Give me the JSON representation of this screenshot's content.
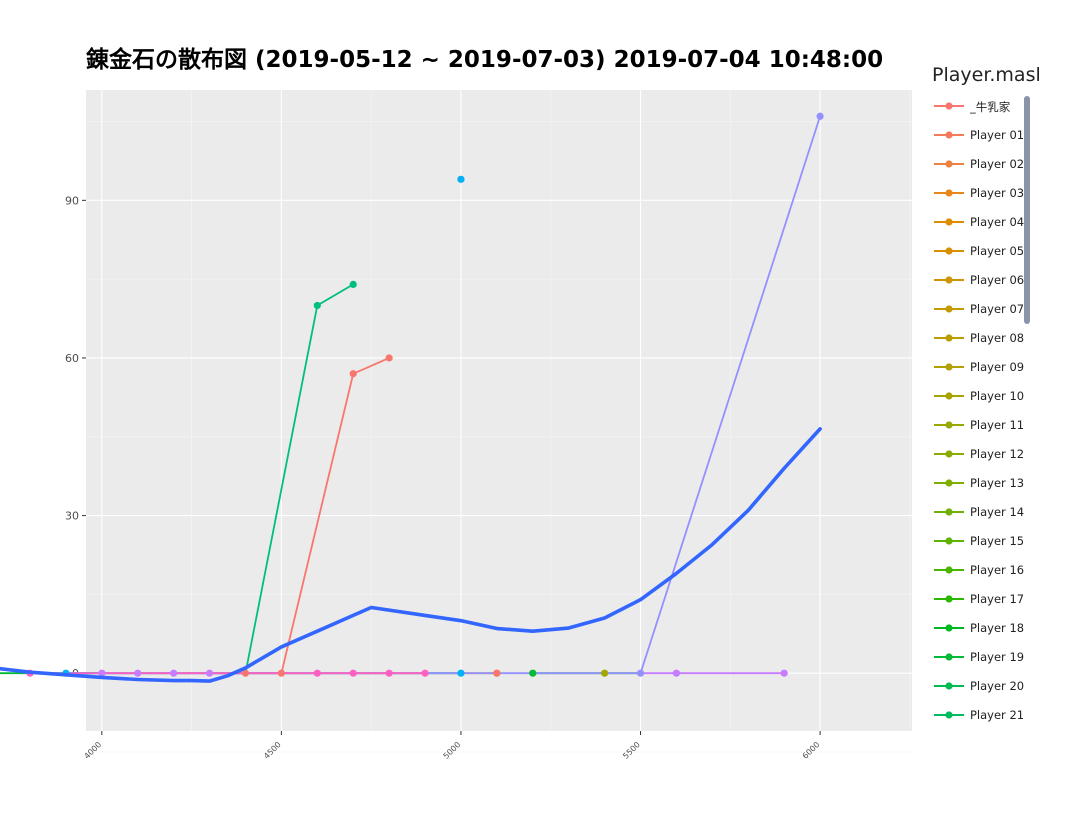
{
  "title": "錬金石の散布図 (2019-05-12 ~ 2019-07-03) 2019-07-04 10:48:00",
  "legend": {
    "title": "Player.masl",
    "items": [
      {
        "label": "_牛乳家",
        "color": "#F8766D"
      },
      {
        "label": "Player 01",
        "color": "#F37B59"
      },
      {
        "label": "Player 02",
        "color": "#ED8141"
      },
      {
        "label": "Player 03",
        "color": "#E7861B"
      },
      {
        "label": "Player 04",
        "color": "#DF8C00"
      },
      {
        "label": "Player 05",
        "color": "#D89000"
      },
      {
        "label": "Player 06",
        "color": "#CF9400"
      },
      {
        "label": "Player 07",
        "color": "#C59900"
      },
      {
        "label": "Player 08",
        "color": "#BB9D00"
      },
      {
        "label": "Player 09",
        "color": "#B0A100"
      },
      {
        "label": "Player 10",
        "color": "#A5A400"
      },
      {
        "label": "Player 11",
        "color": "#99A800"
      },
      {
        "label": "Player 12",
        "color": "#8CAB00"
      },
      {
        "label": "Player 13",
        "color": "#7FAE00"
      },
      {
        "label": "Player 14",
        "color": "#70B000"
      },
      {
        "label": "Player 15",
        "color": "#5EB300"
      },
      {
        "label": "Player 16",
        "color": "#49B500"
      },
      {
        "label": "Player 17",
        "color": "#2AB700"
      },
      {
        "label": "Player 18",
        "color": "#00B81F"
      },
      {
        "label": "Player 19",
        "color": "#00BA38"
      },
      {
        "label": "Player 20",
        "color": "#00BB4D"
      },
      {
        "label": "Player 21",
        "color": "#00BC5F"
      }
    ]
  },
  "chart_data": {
    "type": "line",
    "title": "錬金石の散布図 (2019-05-12 ~ 2019-07-03) 2019-07-04 10:48:00",
    "xlabel": "",
    "ylabel": "",
    "xlim": [
      3800,
      6100
    ],
    "ylim": [
      -11,
      111
    ],
    "x_ticks": [
      4000,
      4500,
      5000,
      5500,
      6000
    ],
    "x_tick_labels": [
      "4000",
      "4500",
      "5000",
      "5500",
      "6000"
    ],
    "y_ticks": [
      0,
      30,
      60,
      90
    ],
    "y_tick_labels": [
      "0",
      "30",
      "60",
      "90"
    ],
    "grid": true,
    "legend_position": "right",
    "series": [
      {
        "color": "#C09B00",
        "x": [
          4000,
          4100,
          4200,
          4300,
          4400,
          4500,
          4600,
          4700,
          4800,
          4900,
          5000,
          5100
        ],
        "y": [
          0,
          0,
          0,
          0,
          0,
          0,
          0,
          0,
          0,
          0,
          0,
          0
        ]
      },
      {
        "color": "#00BA38",
        "x": [
          3700,
          3800,
          3900,
          4000
        ],
        "y": [
          0,
          0,
          0,
          0
        ]
      },
      {
        "color": "#00BF7D",
        "x": [
          4300,
          4400,
          4600,
          4700
        ],
        "y": [
          0,
          0,
          70,
          74
        ]
      },
      {
        "color": "#F8766D",
        "x": [
          4300,
          4400,
          4500,
          4700,
          4800
        ],
        "y": [
          0,
          0,
          0,
          57,
          60
        ]
      },
      {
        "color": "#00B0F6",
        "x": [
          3900,
          4000,
          5000
        ],
        "y": [
          0,
          0,
          0
        ]
      },
      {
        "color": "#00BA38",
        "x": [
          5200,
          5300,
          5400,
          5500
        ],
        "y": [
          0,
          0,
          0,
          0
        ]
      },
      {
        "color": "#9590FF",
        "x": [
          4000,
          4100,
          4200,
          4300,
          5500,
          6000
        ],
        "y": [
          0,
          0,
          0,
          0,
          0,
          106
        ]
      },
      {
        "color": "#C77CFF",
        "x": [
          5500,
          5600,
          5900
        ],
        "y": [
          0,
          0,
          0
        ]
      },
      {
        "color": "#FF61C3",
        "x": [
          3800,
          4400,
          4500,
          4600,
          4700,
          4800,
          4900
        ],
        "y": [
          0,
          0,
          0,
          0,
          0,
          0,
          0
        ]
      },
      {
        "color": "#00BFC4",
        "x": [
          5000
        ],
        "y": [
          94
        ]
      }
    ],
    "scatter_only": [
      {
        "color": "#00B0F6",
        "x": 5000,
        "y": 94
      },
      {
        "color": "#F8766D",
        "x": 4800,
        "y": 60
      },
      {
        "color": "#F8766D",
        "x": 4700,
        "y": 57
      },
      {
        "color": "#00BF7D",
        "x": 4600,
        "y": 70
      },
      {
        "color": "#00BF7D",
        "x": 4700,
        "y": 74
      },
      {
        "color": "#9590FF",
        "x": 6000,
        "y": 106
      },
      {
        "color": "#00BA38",
        "x": 3700,
        "y": 0
      },
      {
        "color": "#00B0F6",
        "x": 3900,
        "y": 0
      },
      {
        "color": "#FF61C3",
        "x": 3800,
        "y": 0
      },
      {
        "color": "#C77CFF",
        "x": 4000,
        "y": 0
      },
      {
        "color": "#C77CFF",
        "x": 4100,
        "y": 0
      },
      {
        "color": "#C77CFF",
        "x": 4200,
        "y": 0
      },
      {
        "color": "#C77CFF",
        "x": 4300,
        "y": 0
      },
      {
        "color": "#F8766D",
        "x": 4400,
        "y": 0
      },
      {
        "color": "#F8766D",
        "x": 4500,
        "y": 0
      },
      {
        "color": "#FF61C3",
        "x": 4600,
        "y": 0
      },
      {
        "color": "#FF61C3",
        "x": 4700,
        "y": 0
      },
      {
        "color": "#FF61C3",
        "x": 4800,
        "y": 0
      },
      {
        "color": "#FF61C3",
        "x": 4900,
        "y": 0
      },
      {
        "color": "#00B0F6",
        "x": 5000,
        "y": 0
      },
      {
        "color": "#C09B00",
        "x": 5100,
        "y": 0
      },
      {
        "color": "#F8766D",
        "x": 5100,
        "y": 0
      },
      {
        "color": "#00BA38",
        "x": 5200,
        "y": 0
      },
      {
        "color": "#A3A500",
        "x": 5400,
        "y": 0
      },
      {
        "color": "#9590FF",
        "x": 5500,
        "y": 0
      },
      {
        "color": "#C77CFF",
        "x": 5600,
        "y": 0
      },
      {
        "color": "#C77CFF",
        "x": 5900,
        "y": 0
      }
    ],
    "smooth": {
      "color": "#3366FF",
      "x": [
        3700,
        3800,
        3900,
        4000,
        4100,
        4200,
        4250,
        4300,
        4350,
        4400,
        4450,
        4500,
        4600,
        4700,
        4750,
        4800,
        4900,
        5000,
        5100,
        5200,
        5300,
        5400,
        5500,
        5600,
        5700,
        5800,
        5900,
        6000
      ],
      "y": [
        1,
        0.2,
        -0.3,
        -0.8,
        -1.2,
        -1.4,
        -1.4,
        -1.5,
        -0.5,
        1,
        3,
        5,
        8,
        11,
        12.5,
        12,
        11,
        10,
        8.5,
        8,
        8.6,
        10.5,
        14,
        19,
        24.5,
        31,
        39,
        46.5
      ]
    }
  }
}
